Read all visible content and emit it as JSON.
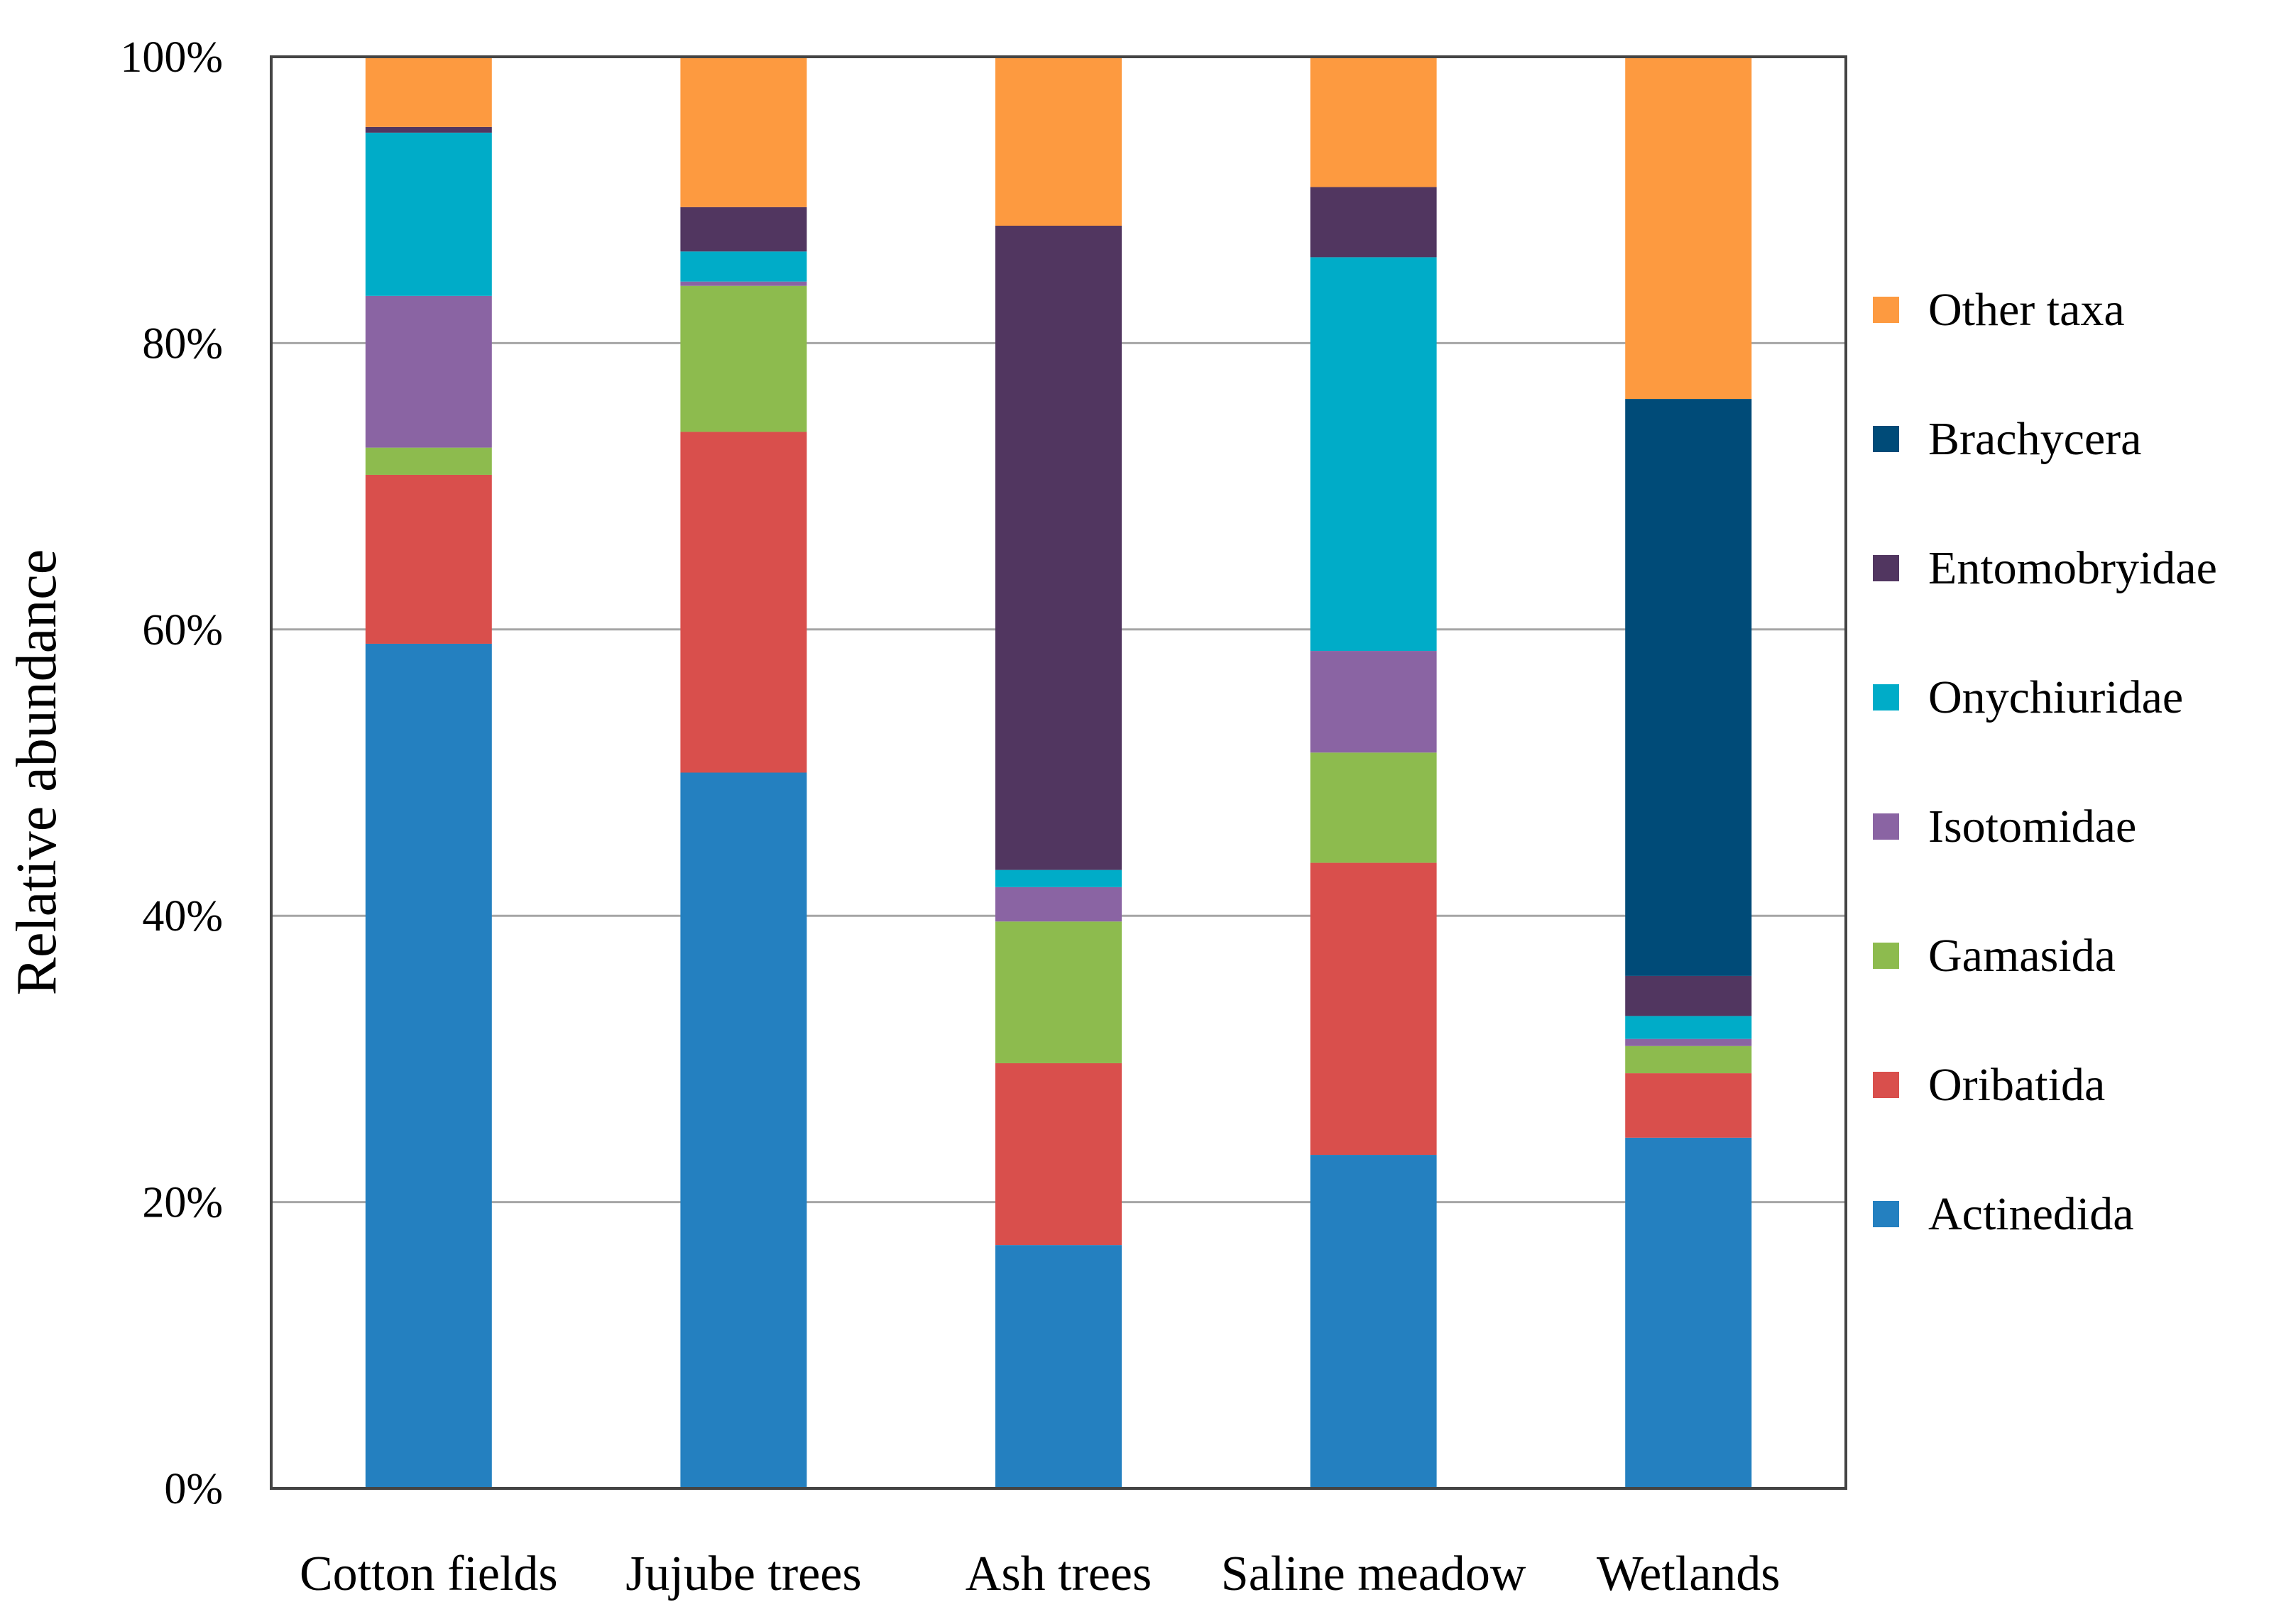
{
  "chart_data": {
    "type": "bar",
    "stacked": true,
    "title": "",
    "xlabel": "",
    "ylabel": "Relative abundance",
    "ylim": [
      0,
      100
    ],
    "yticks": [
      0,
      20,
      40,
      60,
      80,
      100
    ],
    "ytick_labels": [
      "0%",
      "20%",
      "40%",
      "60%",
      "80%",
      "100%"
    ],
    "grid": true,
    "legend_position": "right",
    "categories": [
      "Cotton fields",
      "Jujube trees",
      "Ash trees",
      "Saline meadow",
      "Wetlands"
    ],
    "series": [
      {
        "name": "Actinedida",
        "color": "#2480C0",
        "values": [
          59.0,
          50.0,
          17.0,
          23.3,
          24.5
        ]
      },
      {
        "name": "Oribatida",
        "color": "#D94F4C",
        "values": [
          11.8,
          23.8,
          12.7,
          20.4,
          4.5
        ]
      },
      {
        "name": "Gamasida",
        "color": "#8DBB4E",
        "values": [
          1.9,
          10.2,
          9.9,
          7.7,
          1.9
        ]
      },
      {
        "name": "Isotomidae",
        "color": "#8A64A3",
        "values": [
          10.6,
          0.3,
          2.4,
          7.1,
          0.5
        ]
      },
      {
        "name": "Onychiuridae",
        "color": "#00ACC8",
        "values": [
          11.4,
          2.1,
          1.2,
          27.5,
          1.6
        ]
      },
      {
        "name": "Entomobryidae",
        "color": "#513660",
        "values": [
          0.4,
          3.1,
          45.0,
          4.9,
          2.8
        ]
      },
      {
        "name": "Brachycera",
        "color": "#004B78",
        "values": [
          0.0,
          0.0,
          0.0,
          0.0,
          40.3
        ]
      },
      {
        "name": "Other taxa",
        "color": "#FD9A40",
        "values": [
          4.9,
          10.5,
          11.8,
          9.1,
          24.0
        ]
      }
    ]
  }
}
